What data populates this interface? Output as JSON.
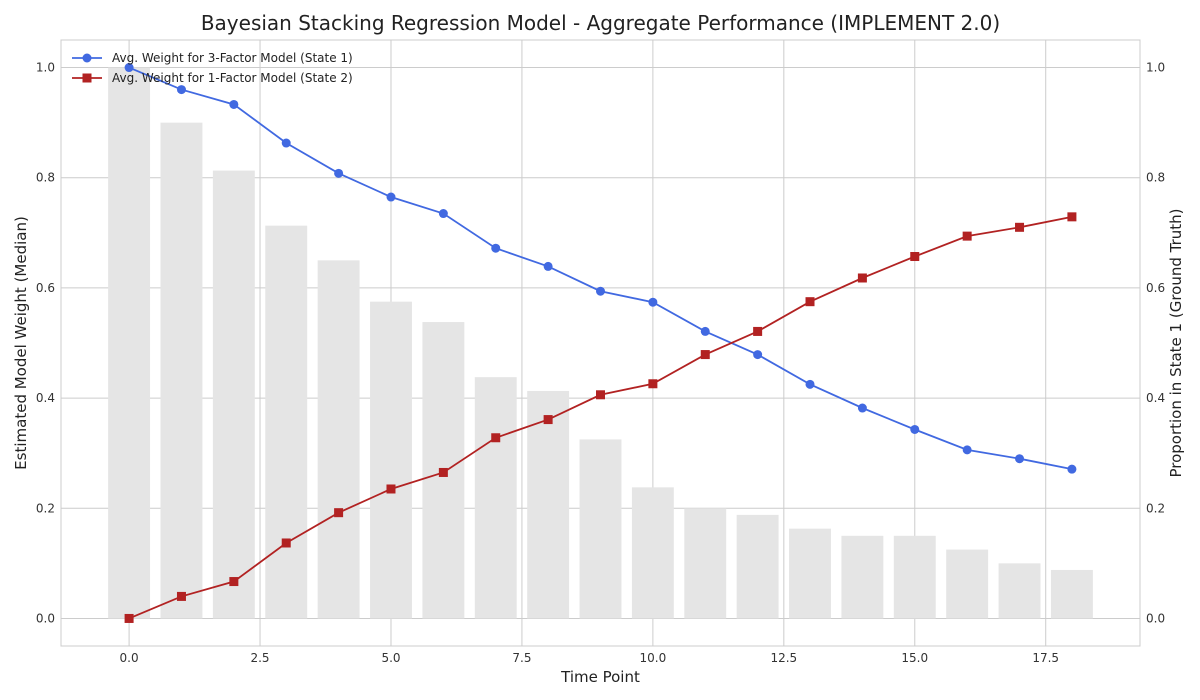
{
  "chart_data": {
    "type": "line",
    "title": "Bayesian Stacking Regression Model - Aggregate Performance (IMPLEMENT 2.0)",
    "xlabel": "Time Point",
    "ylabel": "Estimated Model Weight (Median)",
    "ylabel_right": "Proportion in State 1 (Ground Truth)",
    "x": [
      0,
      1,
      2,
      3,
      4,
      5,
      6,
      7,
      8,
      9,
      10,
      11,
      12,
      13,
      14,
      15,
      16,
      17,
      18
    ],
    "xlim": [
      -1.3,
      19.3
    ],
    "ylim": [
      -0.05,
      1.05
    ],
    "ylim_right": [
      -0.05,
      1.05
    ],
    "xticks": [
      0.0,
      2.5,
      5.0,
      7.5,
      10.0,
      12.5,
      15.0,
      17.5
    ],
    "xtick_labels": [
      "0.0",
      "2.5",
      "5.0",
      "7.5",
      "10.0",
      "12.5",
      "15.0",
      "17.5"
    ],
    "yticks": [
      0.0,
      0.2,
      0.4,
      0.6,
      0.8,
      1.0
    ],
    "ytick_labels": [
      "0.0",
      "0.2",
      "0.4",
      "0.6",
      "0.8",
      "1.0"
    ],
    "grid": true,
    "legend_position": "top-left",
    "series": [
      {
        "name": "Avg. Weight for 3-Factor Model (State 1)",
        "type": "line",
        "marker": "circle",
        "color": "#4169E1",
        "values": [
          1.0,
          0.96,
          0.933,
          0.863,
          0.808,
          0.765,
          0.735,
          0.672,
          0.639,
          0.594,
          0.574,
          0.521,
          0.479,
          0.425,
          0.382,
          0.343,
          0.306,
          0.29,
          0.271
        ]
      },
      {
        "name": "Avg. Weight for 1-Factor Model (State 2)",
        "type": "line",
        "marker": "square",
        "color": "#B22222",
        "values": [
          0.0,
          0.04,
          0.067,
          0.137,
          0.192,
          0.235,
          0.265,
          0.328,
          0.361,
          0.406,
          0.426,
          0.479,
          0.521,
          0.575,
          0.618,
          0.657,
          0.694,
          0.71,
          0.729
        ]
      },
      {
        "name": "Proportion in State 1 (Ground Truth)",
        "type": "bar",
        "axis": "right",
        "color": "#E5E5E5",
        "values": [
          1.0,
          0.9,
          0.813,
          0.713,
          0.65,
          0.575,
          0.538,
          0.438,
          0.413,
          0.325,
          0.238,
          0.2,
          0.188,
          0.163,
          0.15,
          0.15,
          0.125,
          0.1,
          0.088
        ]
      }
    ]
  }
}
